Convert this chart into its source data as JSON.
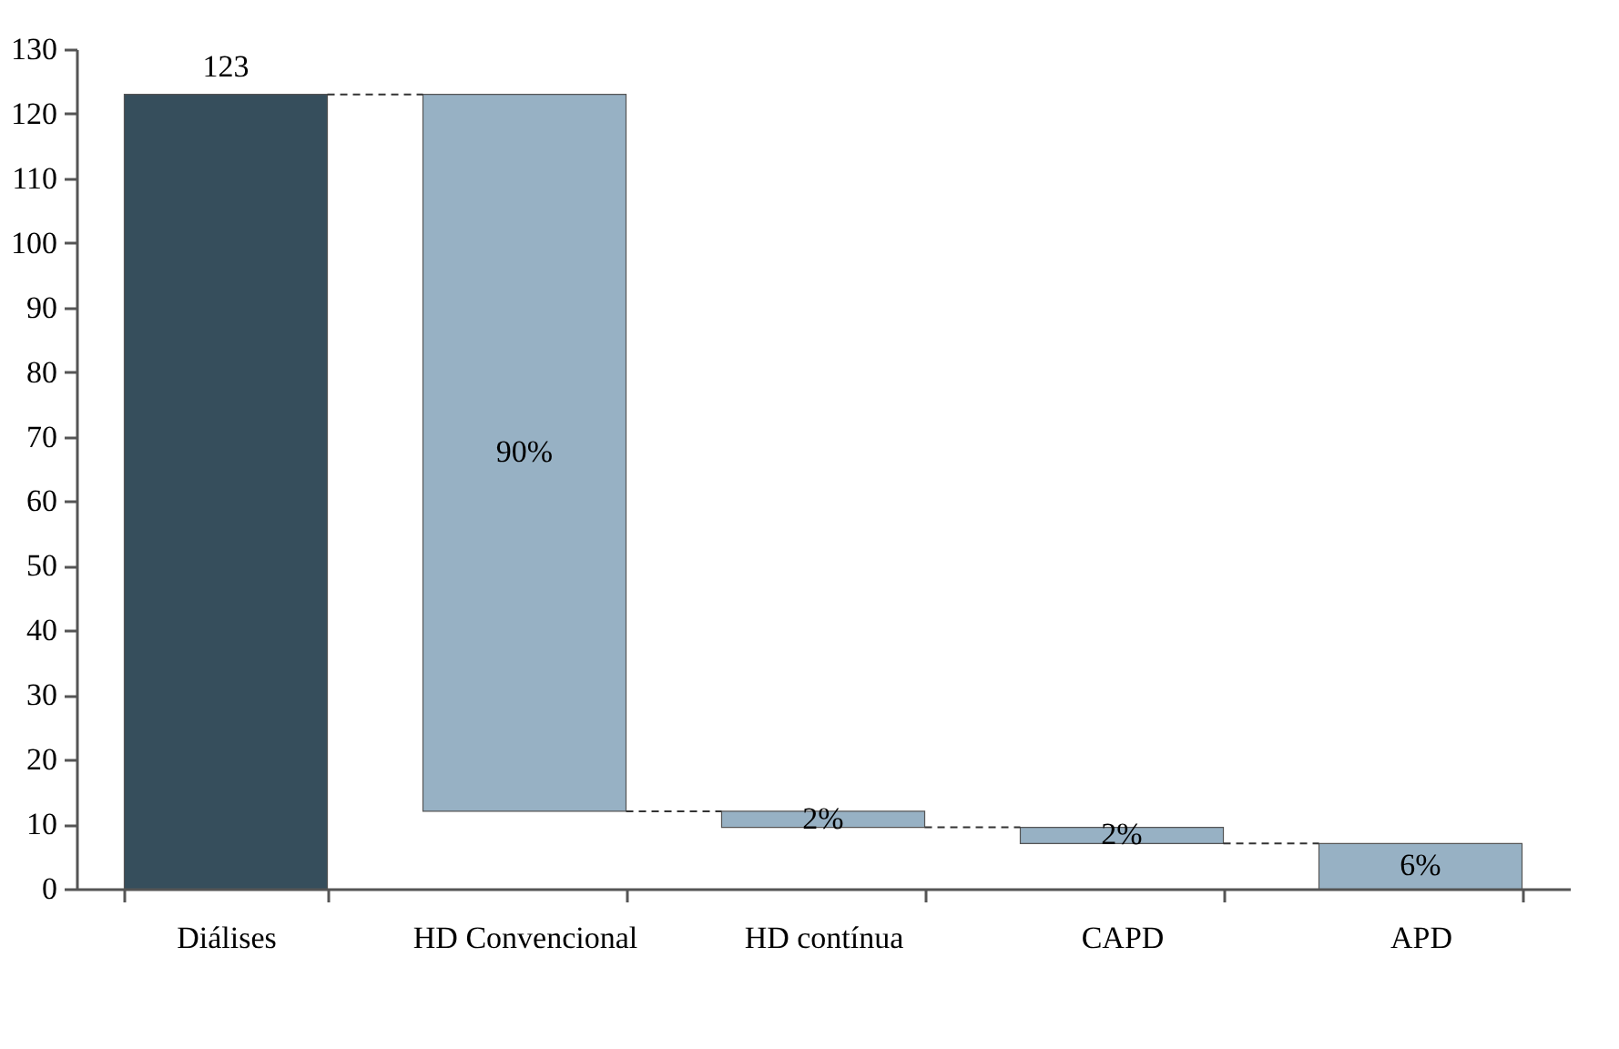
{
  "chart_data": {
    "type": "bar",
    "categories": [
      "Diálises",
      "HD Convencional",
      "HD contínua",
      "CAPD",
      "APD"
    ],
    "values": [
      123,
      -111,
      -2.5,
      -2.5,
      -7
    ],
    "base": [
      0,
      123,
      12,
      9.5,
      7
    ],
    "colors": [
      "#364e5c",
      "#97b1c4",
      "#97b1c4",
      "#97b1c4",
      "#97b1c4"
    ],
    "value_labels": [
      "123",
      null,
      null,
      null,
      null
    ],
    "annotations": [
      "90%",
      "2%",
      "2%",
      "6%"
    ],
    "ylim": [
      0,
      130
    ],
    "yticks": [
      0,
      10,
      20,
      30,
      40,
      50,
      60,
      70,
      80,
      90,
      100,
      110,
      120,
      130
    ],
    "grid": false
  }
}
